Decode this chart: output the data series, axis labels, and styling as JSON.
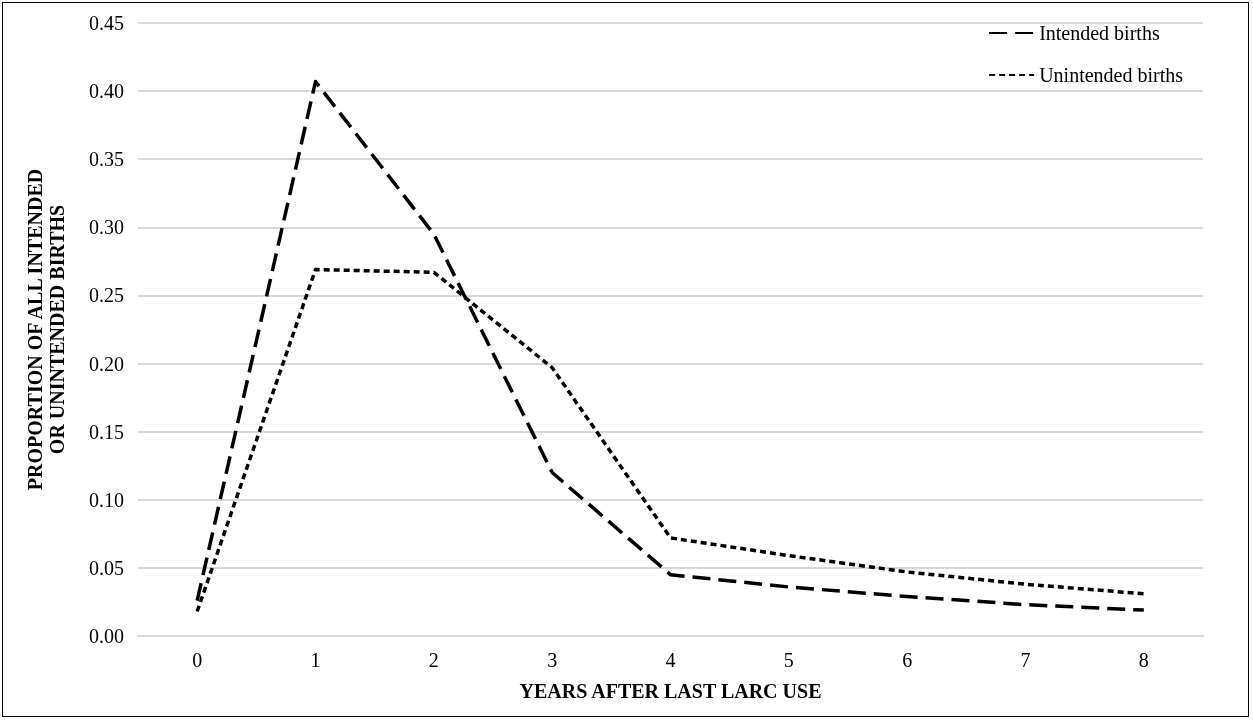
{
  "chart_data": {
    "type": "line",
    "xlabel": "YEARS AFTER LAST LARC USE",
    "ylabel": "PROPORTION OF ALL INTENDED OR UNINTENDED BIRTHS",
    "categories": [
      "0",
      "1",
      "2",
      "3",
      "4",
      "5",
      "6",
      "7",
      "8"
    ],
    "series": [
      {
        "name": "Intended births",
        "color": "#000000",
        "line_style": "dashed",
        "values": [
          0.026,
          0.407,
          0.295,
          0.12,
          0.045,
          0.036,
          0.029,
          0.023,
          0.019
        ]
      },
      {
        "name": "Unintended births",
        "color": "#000000",
        "line_style": "dotted",
        "values": [
          0.018,
          0.269,
          0.267,
          0.197,
          0.072,
          0.059,
          0.047,
          0.038,
          0.031
        ]
      }
    ],
    "ylim": [
      0,
      0.45
    ],
    "yticks": [
      {
        "value": 0,
        "label": "0.00"
      },
      0.05,
      {
        "value": 0.1,
        "label": "0.10"
      },
      0.15,
      {
        "value": 0.2,
        "label": "0.20"
      },
      0.25,
      {
        "value": 0.3,
        "label": "0.30"
      },
      0.35,
      {
        "value": 0.4,
        "label": "0.40"
      },
      0.45
    ],
    "grid": "y",
    "legend": "top right",
    "marker": "none"
  }
}
